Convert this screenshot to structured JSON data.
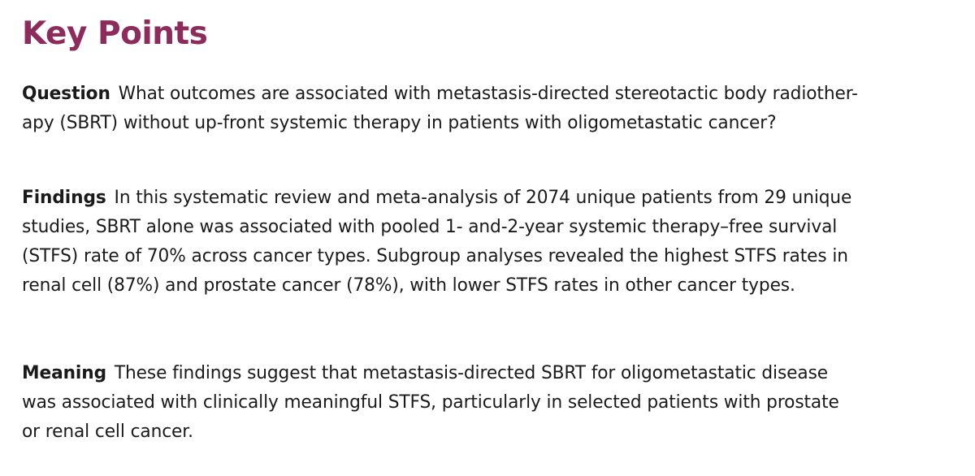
{
  "heading": "Key Points",
  "colors": {
    "heading": "#8c2b5c",
    "body_text": "#1a1a1a",
    "background": "#ffffff"
  },
  "sections": {
    "question": {
      "label": "Question",
      "lines": [
        "What outcomes are associated with metastasis-directed stereotactic body radiother-",
        "apy (SBRT) without up-front systemic therapy in patients with oligometastatic cancer?"
      ]
    },
    "findings": {
      "label": "Findings",
      "lines": [
        "In this systematic review and meta-analysis of 2074 unique patients from 29 unique",
        "studies, SBRT alone was associated with pooled 1- and-2-year systemic therapy–free survival",
        "(STFS) rate of 70% across cancer types. Subgroup analyses revealed the highest STFS rates in",
        "renal cell (87%) and prostate cancer (78%), with lower STFS rates in other cancer types."
      ]
    },
    "meaning": {
      "label": "Meaning",
      "lines": [
        "These findings suggest that metastasis-directed SBRT for oligometastatic disease",
        "was associated with clinically meaningful STFS, particularly in selected patients with prostate",
        "or renal cell cancer."
      ]
    }
  }
}
